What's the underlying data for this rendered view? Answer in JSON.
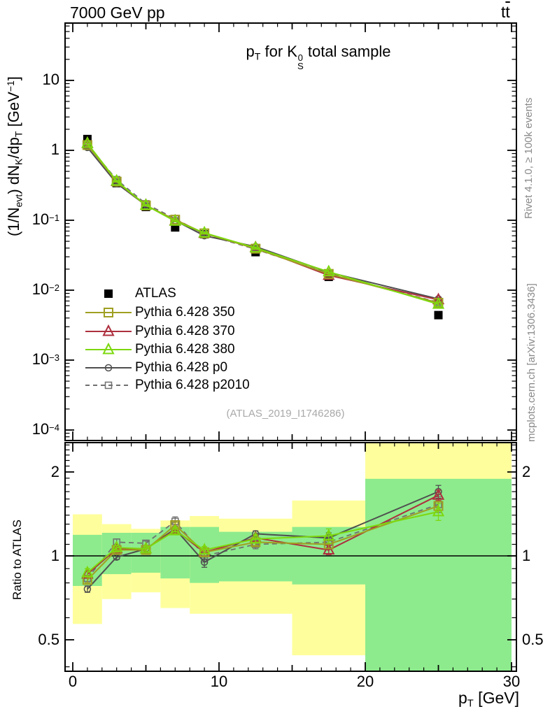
{
  "header": {
    "left_title": "7000 GeV pp",
    "right_title_t1": "t",
    "right_title_t2": "t"
  },
  "side_notes": {
    "top": "Rivet 4.1.0, ≥ 100k events",
    "bottom": "mcplots.cern.ch [arXiv:1306.3436]"
  },
  "watermark": "(ATLAS_2019_I1746286)",
  "main_plot": {
    "title_parts": {
      "s1": "p",
      "s2": "T",
      "s3": " for K",
      "s4": "0",
      "s5": "S",
      "s6": " total sample"
    },
    "ylabel_parts": {
      "s1": "(1/N",
      "s2": "evt",
      "s3": ") dN",
      "s4": "K",
      "s5": "/dp",
      "s6": "T",
      "s7": " [GeV",
      "s8": "−1",
      "s9": "]"
    },
    "yticks": {
      "values": [
        10,
        1,
        0.1,
        0.01,
        0.001,
        0.0001
      ],
      "labels": [
        {
          "base": "10",
          "exp": ""
        },
        {
          "base": "1",
          "exp": ""
        },
        {
          "base": "10",
          "exp": "−1"
        },
        {
          "base": "10",
          "exp": "−2"
        },
        {
          "base": "10",
          "exp": "−3"
        },
        {
          "base": "10",
          "exp": "−4"
        }
      ]
    }
  },
  "ratio_plot": {
    "ylabel": "Ratio to ATLAS",
    "yticks": {
      "values": [
        2,
        1,
        0.5
      ],
      "labels": [
        "2",
        "1",
        "0.5"
      ]
    }
  },
  "xaxis": {
    "ticks": {
      "values": [
        0,
        10,
        20,
        30
      ],
      "labels": [
        "0",
        "10",
        "20",
        "30"
      ]
    },
    "title_parts": {
      "s1": "p",
      "s2": "T",
      "s3": " [GeV]"
    }
  },
  "chart_data": {
    "type": "line",
    "title": "pT for K0S total sample",
    "xlabel": "pT [GeV]",
    "ylabel": "(1/N_evt) dN_K/dp_T [GeV^-1]",
    "x": [
      1,
      3,
      5,
      7,
      9,
      12.5,
      17.5,
      25
    ],
    "bin_edges": [
      0,
      2,
      4,
      6,
      8,
      10,
      15,
      20,
      30
    ],
    "xlim": [
      -0.53,
      30.33
    ],
    "main": {
      "yscale": "log",
      "ylim": [
        7.2e-05,
        66
      ],
      "series": [
        {
          "name": "ATLAS",
          "color": "#000000",
          "marker": "square-filled",
          "msize": 12,
          "mstroke": 1.5,
          "line": "none",
          "values": [
            1.45,
            0.34,
            0.155,
            0.079,
            0.063,
            0.035,
            0.0155,
            0.0044
          ]
        },
        {
          "name": "Pythia 6.428 350",
          "color": "#9f9f22",
          "marker": "square-open",
          "msize": 12,
          "mstroke": 2.0,
          "line": "solid",
          "values": [
            1.19,
            0.357,
            0.163,
            0.102,
            0.065,
            0.0392,
            0.0171,
            0.0066
          ]
        },
        {
          "name": "Pythia 6.428 370",
          "color": "#ad2f3e",
          "marker": "triangle-open",
          "msize": 13,
          "mstroke": 2.0,
          "line": "solid",
          "values": [
            1.25,
            0.36,
            0.164,
            0.098,
            0.065,
            0.0406,
            0.0163,
            0.0073
          ]
        },
        {
          "name": "Pythia 6.428 380",
          "color": "#7dd80e",
          "marker": "triangle-open",
          "msize": 13,
          "mstroke": 2.0,
          "line": "solid",
          "values": [
            1.26,
            0.364,
            0.164,
            0.097,
            0.066,
            0.0403,
            0.0183,
            0.0063
          ]
        },
        {
          "name": "Pythia 6.428 p0",
          "color": "#4f4f4f",
          "marker": "circle-open",
          "msize": 9,
          "mstroke": 1.5,
          "line": "solid",
          "values": [
            1.1,
            0.337,
            0.164,
            0.099,
            0.06,
            0.042,
            0.018,
            0.0075
          ]
        },
        {
          "name": "Pythia 6.428 p2010",
          "color": "#707070",
          "marker": "square-open",
          "msize": 9,
          "mstroke": 1.5,
          "line": "dashed",
          "values": [
            1.2,
            0.381,
            0.172,
            0.105,
            0.063,
            0.0385,
            0.0174,
            0.0067
          ]
        }
      ]
    },
    "ratio": {
      "yscale": "log",
      "ylim": [
        0.386,
        2.55
      ],
      "reference": 1,
      "series": [
        {
          "name": "Pythia 6.428 350",
          "values": [
            0.82,
            1.05,
            1.05,
            1.29,
            1.03,
            1.12,
            1.1,
            1.51
          ],
          "errors": [
            0.02,
            0.02,
            0.02,
            0.03,
            0.03,
            0.03,
            0.04,
            0.06
          ]
        },
        {
          "name": "Pythia 6.428 370",
          "values": [
            0.86,
            1.06,
            1.06,
            1.24,
            1.03,
            1.16,
            1.05,
            1.65
          ],
          "errors": [
            0.02,
            0.02,
            0.02,
            0.03,
            0.03,
            0.03,
            0.04,
            0.07
          ]
        },
        {
          "name": "Pythia 6.428 380",
          "values": [
            0.87,
            1.07,
            1.06,
            1.23,
            1.05,
            1.15,
            1.18,
            1.44
          ],
          "errors": [
            0.03,
            0.02,
            0.02,
            0.03,
            0.03,
            0.04,
            0.07,
            0.1
          ]
        },
        {
          "name": "Pythia 6.428 p0",
          "values": [
            0.76,
            0.99,
            1.06,
            1.25,
            0.95,
            1.2,
            1.16,
            1.7
          ],
          "errors": [
            0.02,
            0.02,
            0.02,
            0.03,
            0.04,
            0.03,
            0.05,
            0.09
          ]
        },
        {
          "name": "Pythia 6.428 p2010",
          "values": [
            0.83,
            1.12,
            1.11,
            1.33,
            1.0,
            1.1,
            1.12,
            1.53
          ],
          "errors": [
            0.02,
            0.03,
            0.02,
            0.05,
            0.05,
            0.04,
            0.05,
            0.1
          ]
        }
      ],
      "bands": {
        "yellow_color": "#feff9c",
        "green_color": "#8deb8d",
        "bins": [
          [
            0,
            2
          ],
          [
            2,
            4
          ],
          [
            4,
            6
          ],
          [
            6,
            8
          ],
          [
            8,
            10
          ],
          [
            10,
            15
          ],
          [
            15,
            20
          ],
          [
            20,
            30
          ]
        ],
        "yellow": [
          [
            0.57,
            1.41
          ],
          [
            0.7,
            1.3
          ],
          [
            0.74,
            1.25
          ],
          [
            0.65,
            1.34
          ],
          [
            0.62,
            1.39
          ],
          [
            0.62,
            1.36
          ],
          [
            0.44,
            1.58
          ],
          [
            0.386,
            2.55
          ]
        ],
        "green": [
          [
            0.78,
            1.19
          ],
          [
            0.86,
            1.21
          ],
          [
            0.87,
            1.21
          ],
          [
            0.83,
            1.27
          ],
          [
            0.8,
            1.27
          ],
          [
            0.81,
            1.22
          ],
          [
            0.79,
            1.27
          ],
          [
            0.386,
            1.89
          ]
        ]
      }
    }
  }
}
